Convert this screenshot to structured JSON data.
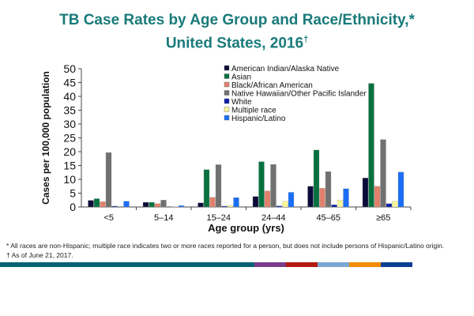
{
  "title_line1": "TB Case Rates by Age Group and Race/Ethnicity,*",
  "title_line2": "United States, 2016",
  "title_mark": "†",
  "footnotes": [
    "*  All races are non-Hispanic;  multiple race indicates two or more races reported for a person, but does not include persons of Hispanic/Latino origin.",
    "†  As of June 21, 2017."
  ],
  "footer_colors": [
    "#006470",
    "#7b3b8c",
    "#b5170e",
    "#7aa7d4",
    "#f28c00",
    "#0a3f93"
  ],
  "chart_data": {
    "type": "bar",
    "title": "TB Case Rates by Age Group and Race/Ethnicity,* United States, 2016†",
    "xlabel": "Age group (yrs)",
    "ylabel": "Cases per 100,000 population",
    "ylim": [
      0,
      50
    ],
    "yticks": [
      "0",
      "5",
      "10",
      "15",
      "20",
      "25",
      "30",
      "35",
      "40",
      "45",
      "50"
    ],
    "grid": false,
    "legend_position": "top-right",
    "categories": [
      "<5",
      "5–14",
      "15–24",
      "24–44",
      "45–65",
      "≥65"
    ],
    "series": [
      {
        "name": "American Indian/Alaska Native",
        "color": "#0b0b3a",
        "values": [
          2.4,
          1.7,
          1.5,
          3.8,
          7.5,
          10.5
        ]
      },
      {
        "name": "Asian",
        "color": "#06713f",
        "values": [
          3.0,
          1.7,
          13.5,
          16.4,
          20.6,
          44.7
        ]
      },
      {
        "name": "Black/African American",
        "color": "#e0806c",
        "values": [
          1.9,
          1.2,
          3.5,
          5.8,
          6.8,
          7.5
        ]
      },
      {
        "name": "Native Hawaiian/Other Pacific Islander",
        "color": "#707070",
        "values": [
          19.7,
          2.5,
          15.3,
          15.4,
          12.8,
          24.4
        ]
      },
      {
        "name": "White",
        "color": "#0a1fa6",
        "values": [
          0.3,
          0.0,
          0.3,
          0.4,
          0.8,
          1.2
        ]
      },
      {
        "name": "Multiple race",
        "color": "#f7f59a",
        "values": [
          0.0,
          0.1,
          0.6,
          2.1,
          2.5,
          2.1
        ]
      },
      {
        "name": "Hispanic/Latino",
        "color": "#1a6ef5",
        "values": [
          2.1,
          0.5,
          3.4,
          5.3,
          6.6,
          12.6
        ]
      }
    ]
  }
}
